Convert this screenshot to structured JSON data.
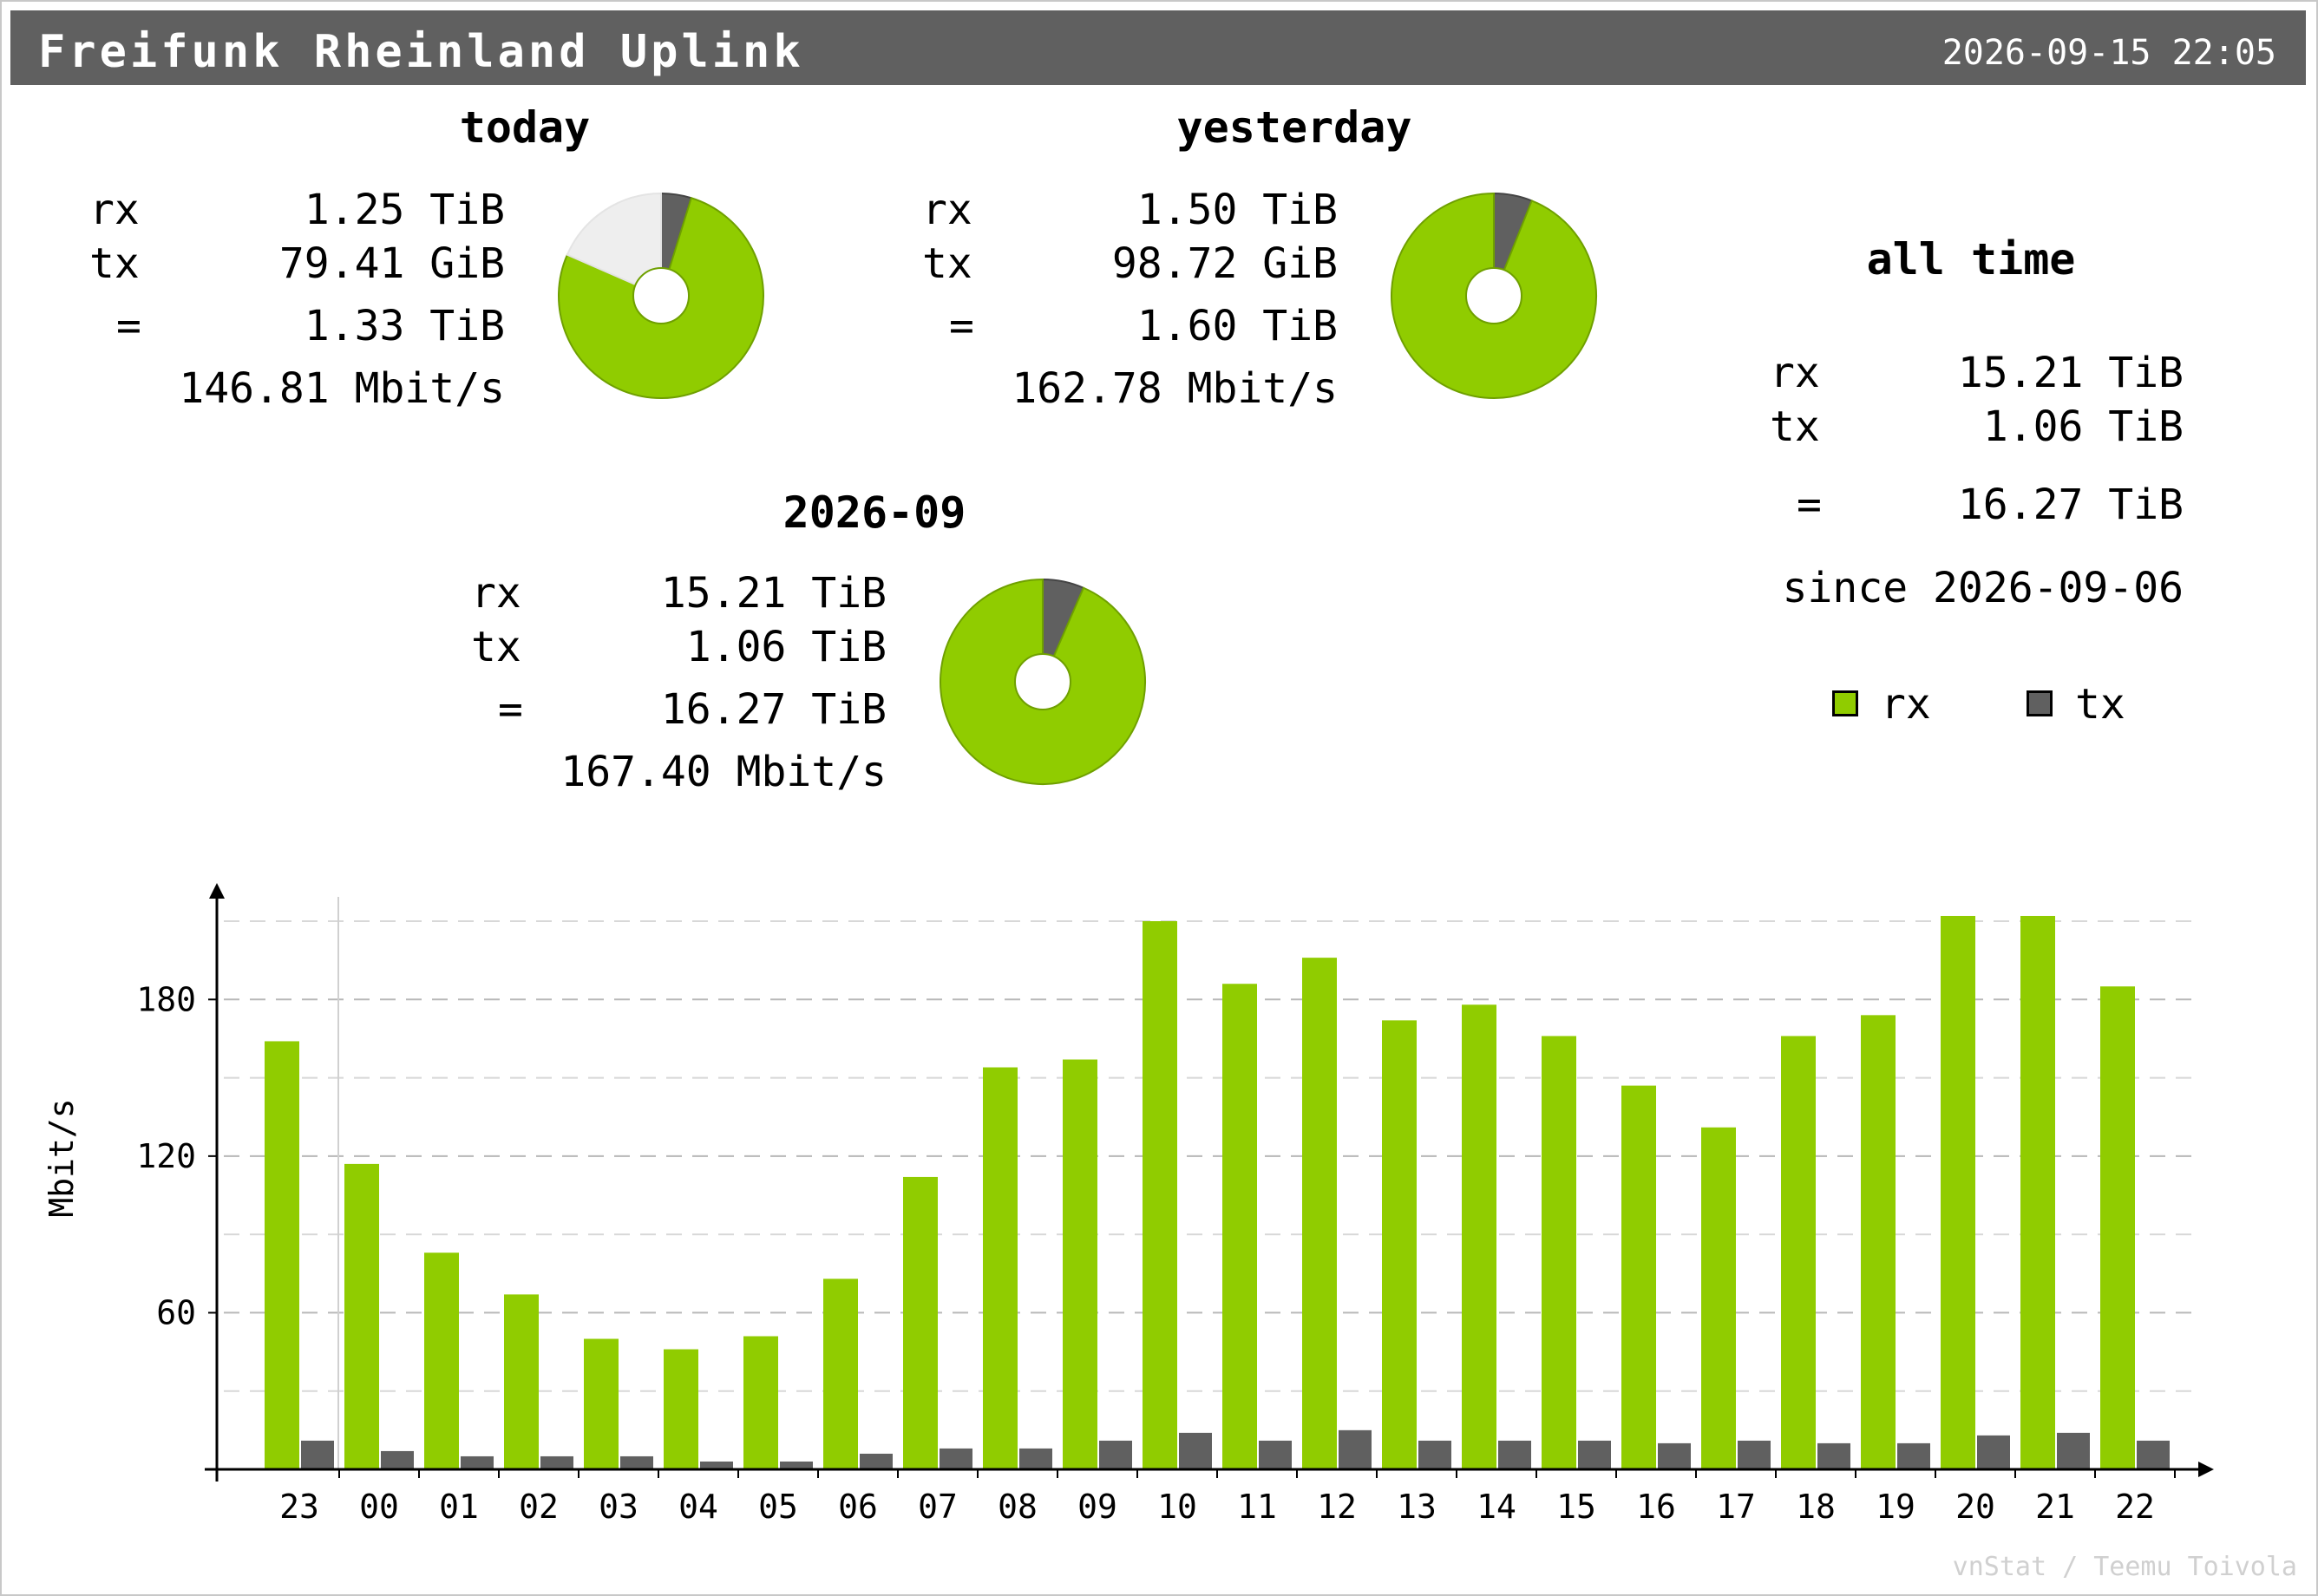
{
  "header": {
    "title": "Freifunk Rheinland Uplink",
    "timestamp": "2026-09-15 22:05"
  },
  "summary": {
    "today": {
      "heading": "today",
      "rx_label": "rx",
      "rx": "1.25 TiB",
      "tx_label": "tx",
      "tx": "79.41 GiB",
      "total_label": "=",
      "total": "1.33 TiB",
      "rate": "146.81 Mbit/s",
      "pie": {
        "rx": 1.25,
        "tx": 0.0776,
        "unused": 0.3
      }
    },
    "yesterday": {
      "heading": "yesterday",
      "rx_label": "rx",
      "rx": "1.50 TiB",
      "tx_label": "tx",
      "tx": "98.72 GiB",
      "total_label": "=",
      "total": "1.60 TiB",
      "rate": "162.78 Mbit/s",
      "pie": {
        "rx": 1.5,
        "tx": 0.0964,
        "unused": 0
      }
    },
    "month": {
      "heading": "2026-09",
      "rx_label": "rx",
      "rx": "15.21 TiB",
      "tx_label": "tx",
      "tx": "1.06 TiB",
      "total_label": "=",
      "total": "16.27 TiB",
      "rate": "167.40 Mbit/s",
      "pie": {
        "rx": 15.21,
        "tx": 1.06,
        "unused": 0
      }
    },
    "all_time": {
      "heading": "all time",
      "rx_label": "rx",
      "rx": "15.21 TiB",
      "tx_label": "tx",
      "tx": "1.06 TiB",
      "total_label": "=",
      "total": "16.27 TiB",
      "since": "since 2026-09-06"
    }
  },
  "legend": {
    "rx": "rx",
    "tx": "tx"
  },
  "colors": {
    "rx": "#90cc00",
    "tx": "#606060",
    "title_bar": "#606060",
    "unused": "#eeeeee"
  },
  "credit": "vnStat / Teemu Toivola",
  "chart_data": {
    "type": "bar",
    "ylabel": "Mbit/s",
    "ylim": [
      0,
      210
    ],
    "yticks": [
      60,
      120,
      180
    ],
    "grid": true,
    "categories": [
      "23",
      "00",
      "01",
      "02",
      "03",
      "04",
      "05",
      "06",
      "07",
      "08",
      "09",
      "10",
      "11",
      "12",
      "13",
      "14",
      "15",
      "16",
      "17",
      "18",
      "19",
      "20",
      "21",
      "22"
    ],
    "series": [
      {
        "name": "rx",
        "values": [
          164,
          117,
          83,
          67,
          50,
          46,
          51,
          73,
          112,
          154,
          157,
          210,
          186,
          196,
          172,
          178,
          166,
          147,
          131,
          166,
          174,
          212,
          212,
          185
        ]
      },
      {
        "name": "tx",
        "values": [
          11,
          7,
          5,
          5,
          5,
          3,
          3,
          6,
          8,
          8,
          11,
          14,
          11,
          15,
          11,
          11,
          11,
          10,
          11,
          10,
          10,
          13,
          14,
          11
        ]
      }
    ]
  }
}
